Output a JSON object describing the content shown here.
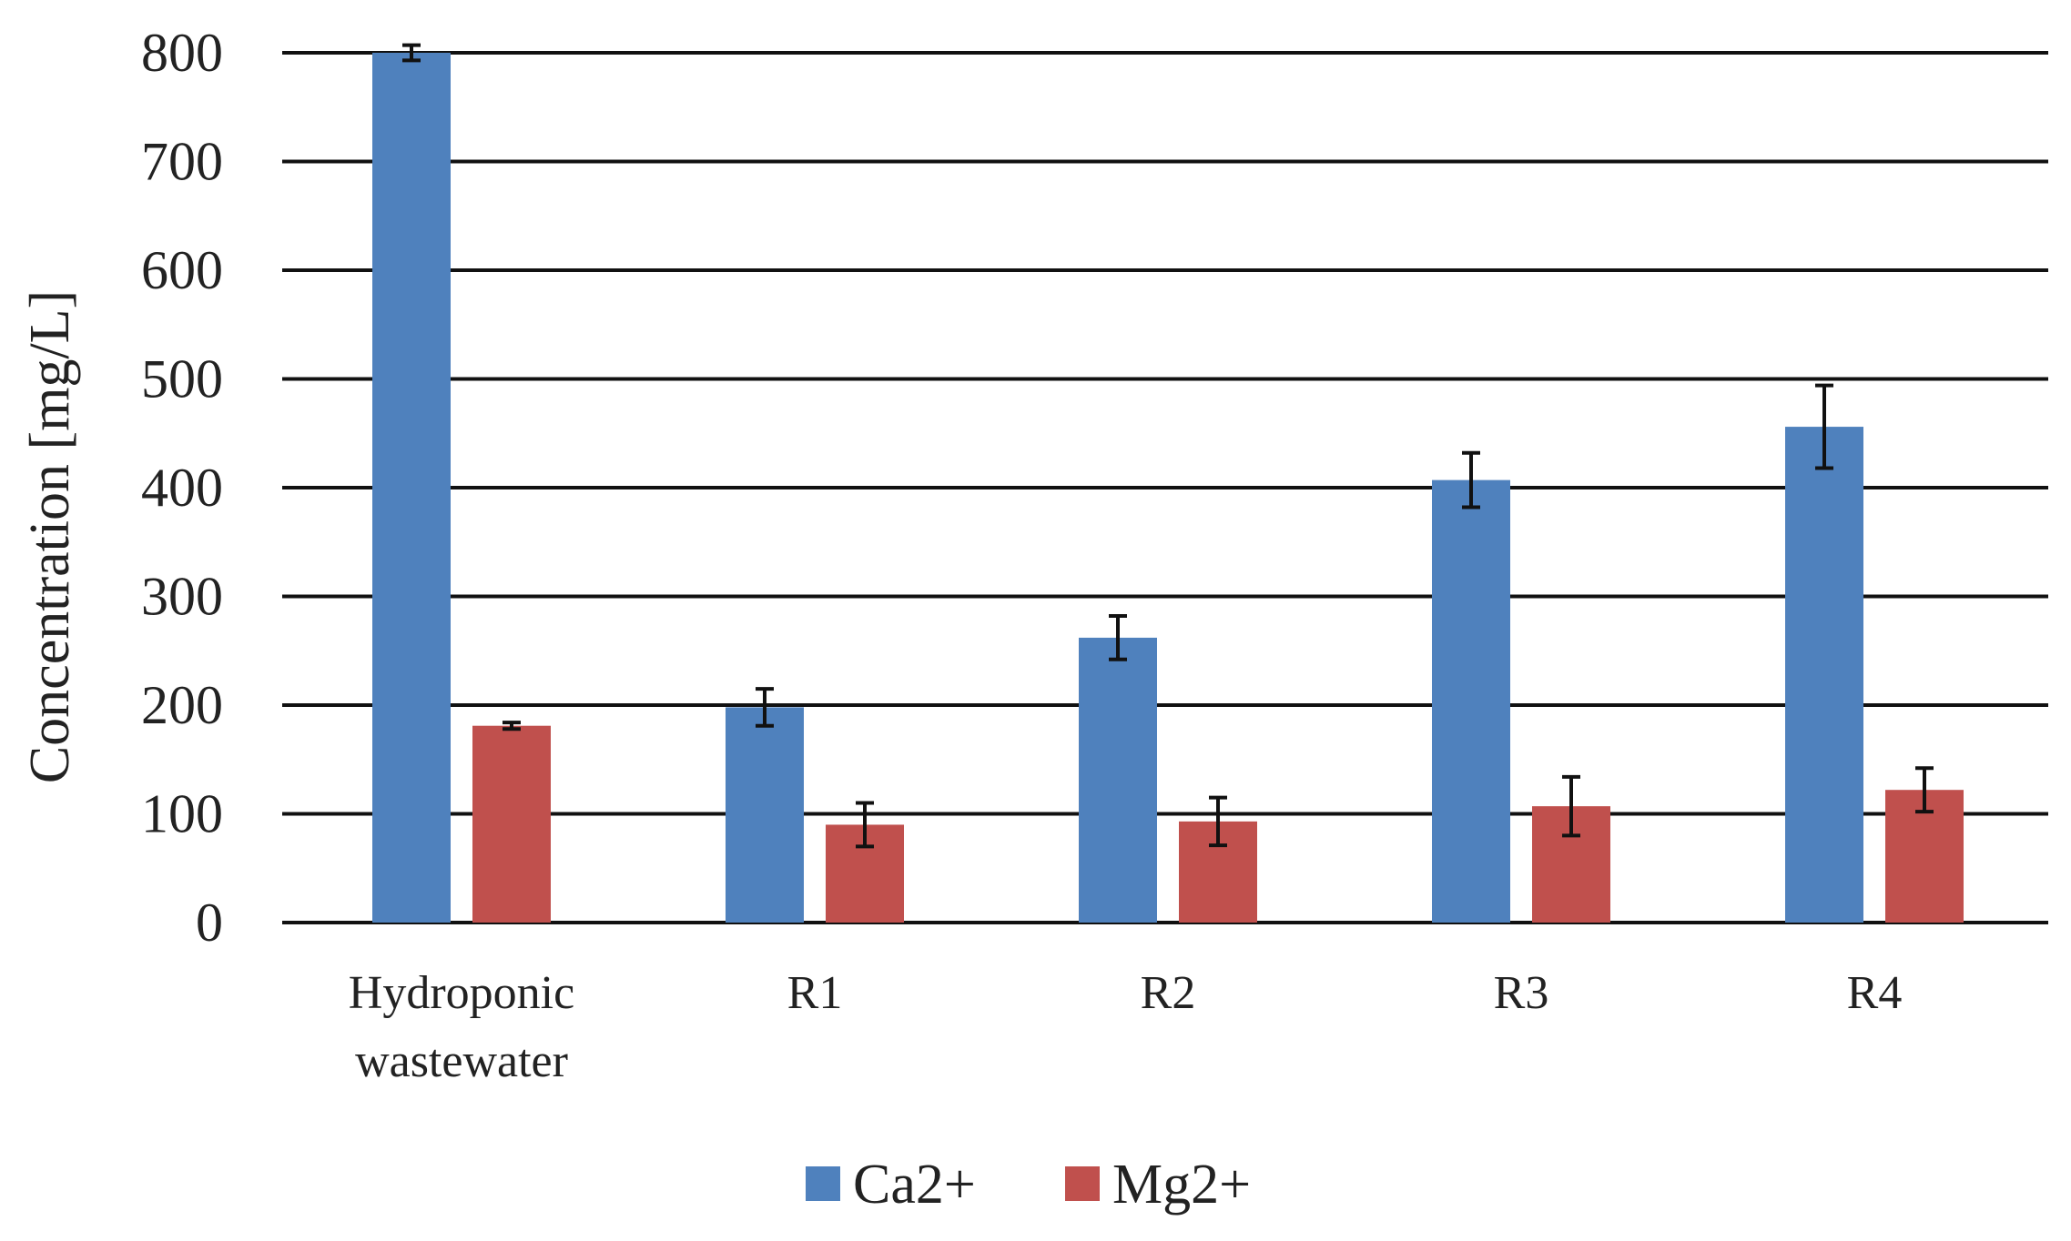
{
  "chart_data": {
    "type": "bar",
    "title": "",
    "xlabel": "",
    "ylabel": "Concentration  [mg/L]",
    "ylim": [
      0,
      800
    ],
    "yticks": [
      0,
      100,
      200,
      300,
      400,
      500,
      600,
      700,
      800
    ],
    "grid": true,
    "legend_position": "bottom-center",
    "categories": [
      [
        "Hydroponic",
        "wastewater"
      ],
      [
        "R1"
      ],
      [
        "R2"
      ],
      [
        "R3"
      ],
      [
        "R4"
      ]
    ],
    "series": [
      {
        "name": "Ca2+",
        "color": "#4F81BD",
        "values": [
          800,
          198,
          262,
          407,
          456
        ],
        "errors": [
          7,
          17,
          20,
          25,
          38
        ]
      },
      {
        "name": "Mg2+",
        "color": "#C0504D",
        "values": [
          181,
          90,
          93,
          107,
          122
        ],
        "errors": [
          3,
          20,
          22,
          27,
          20
        ]
      }
    ]
  }
}
